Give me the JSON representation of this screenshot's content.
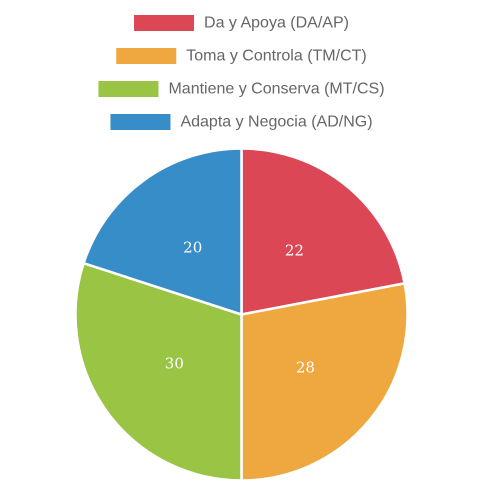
{
  "chart_data": {
    "type": "pie",
    "title": "",
    "categories": [
      "Da y Apoya (DA/AP)",
      "Toma y Controla (TM/CT)",
      "Mantiene y Conserva (MT/CS)",
      "Adapta y Negocia (AD/NG)"
    ],
    "values": [
      22,
      28,
      30,
      20
    ],
    "colors": [
      "#dc4756",
      "#efa73f",
      "#99c444",
      "#368dc7"
    ],
    "legend_position": "top",
    "show_values": true
  }
}
